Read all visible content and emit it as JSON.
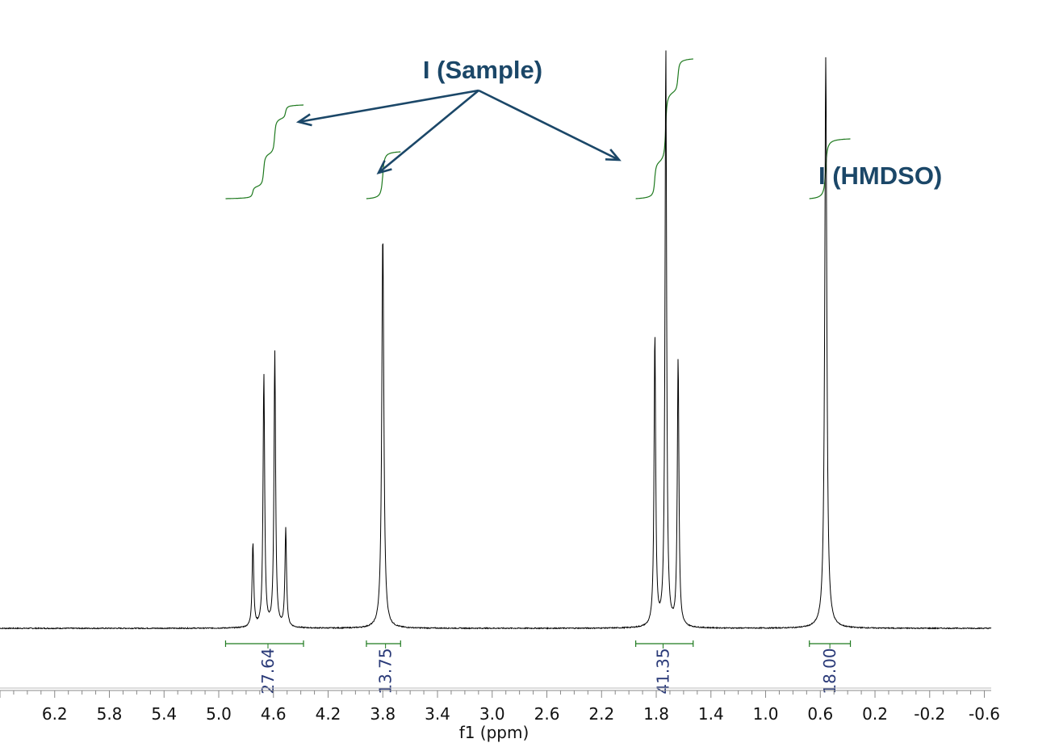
{
  "colors": {
    "spectrum": "#000000",
    "integral": "#1f7a1f",
    "integral_value": "#2a3a78",
    "annotation": "#1b4768",
    "axis": "#888888"
  },
  "chart_data": {
    "type": "line",
    "xlabel": "f1 (ppm)",
    "x_reversed": true,
    "xlim": [
      6.6,
      -0.65
    ],
    "ylim": [
      0,
      100
    ],
    "x_ticks": [
      "6.2",
      "5.8",
      "5.4",
      "5.0",
      "4.6",
      "4.2",
      "3.8",
      "3.4",
      "3.0",
      "2.6",
      "2.2",
      "1.8",
      "1.4",
      "1.0",
      "0.6",
      "0.2",
      "-0.2",
      "-0.6"
    ],
    "peaks": [
      {
        "ppm": 4.75,
        "height": 14.5,
        "width": 0.007
      },
      {
        "ppm": 4.67,
        "height": 43.7,
        "width": 0.007
      },
      {
        "ppm": 4.59,
        "height": 47.5,
        "width": 0.007
      },
      {
        "ppm": 4.51,
        "height": 16.9,
        "width": 0.007
      },
      {
        "ppm": 3.8,
        "height": 68.0,
        "width": 0.009
      },
      {
        "ppm": 1.81,
        "height": 50.5,
        "width": 0.007
      },
      {
        "ppm": 1.73,
        "height": 100.0,
        "width": 0.007
      },
      {
        "ppm": 1.64,
        "height": 46.2,
        "width": 0.007
      },
      {
        "ppm": 0.56,
        "height": 98.5,
        "width": 0.009
      }
    ],
    "integrals": [
      {
        "value": "27.64",
        "from": 4.95,
        "to": 4.38,
        "label_ppm": 4.64
      },
      {
        "value": "13.75",
        "from": 3.92,
        "to": 3.67,
        "label_ppm": 3.78
      },
      {
        "value": "41.35",
        "from": 1.95,
        "to": 1.53,
        "label_ppm": 1.75
      },
      {
        "value": "18.00",
        "from": 0.68,
        "to": 0.38,
        "label_ppm": 0.53
      }
    ],
    "annotations": {
      "sample_label": "I (Sample)",
      "reference_label": "I (HMDSO)"
    }
  }
}
